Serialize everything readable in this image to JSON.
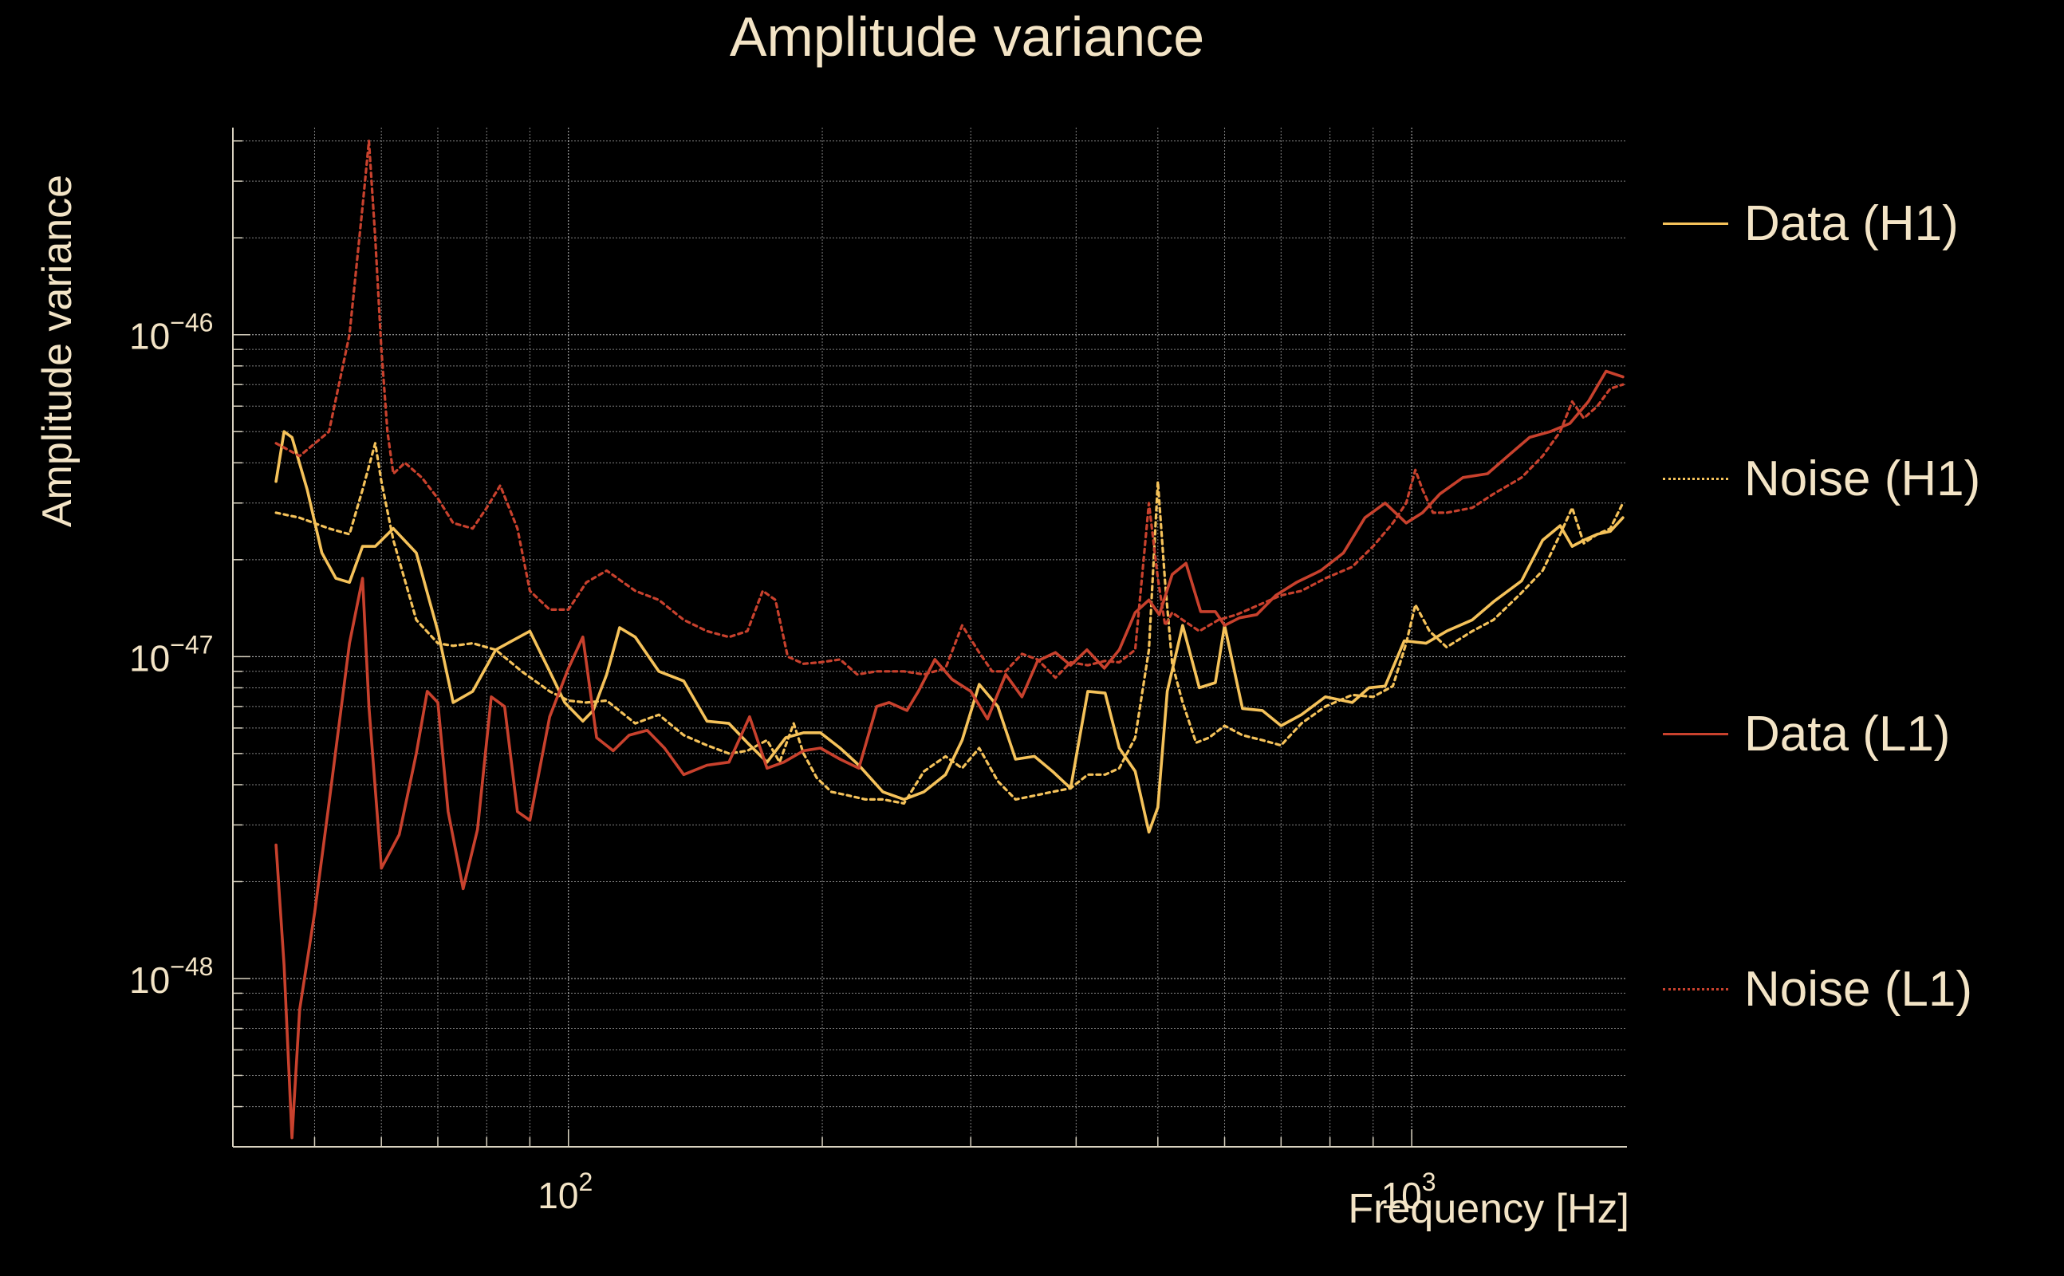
{
  "chart_data": {
    "type": "line",
    "title": "Amplitude variance",
    "xlabel": "Frequency [Hz]",
    "ylabel": "Amplitude variance",
    "x_scale": "log",
    "y_scale": "log",
    "xlim": [
      40,
      1800
    ],
    "ylim": [
      3e-49,
      4.4e-46
    ],
    "x_ticks": [
      {
        "value": 100,
        "base": "10",
        "exp": "2"
      },
      {
        "value": 1000,
        "base": "10",
        "exp": "3"
      }
    ],
    "y_ticks": [
      {
        "value": 1e-46,
        "base": "10",
        "exp": "−46"
      },
      {
        "value": 1e-47,
        "base": "10",
        "exp": "−47"
      },
      {
        "value": 1e-48,
        "base": "10",
        "exp": "−48"
      }
    ],
    "grid": true,
    "legend_position": "right",
    "series": [
      {
        "name": "Data (H1)",
        "color": "#f5c25a",
        "style": "solid",
        "x": [
          45,
          46,
          47,
          49,
          51,
          53,
          55,
          57,
          59,
          62,
          66,
          70,
          73,
          77,
          82,
          90,
          95,
          99,
          104,
          107,
          111,
          115,
          120,
          128,
          137,
          146,
          155,
          163,
          172,
          181,
          190,
          199,
          210,
          221,
          236,
          250,
          264,
          280,
          293,
          307,
          323,
          339,
          357,
          375,
          394,
          413,
          433,
          450,
          470,
          488,
          500,
          513,
          535,
          560,
          585,
          600,
          630,
          665,
          700,
          740,
          790,
          850,
          890,
          930,
          980,
          1040,
          1100,
          1180,
          1250,
          1350,
          1430,
          1500,
          1550,
          1600,
          1660,
          1720,
          1780
        ],
        "y": [
          3.5e-47,
          5e-47,
          4.8e-47,
          3.3e-47,
          2.1e-47,
          1.75e-47,
          1.7e-47,
          2.2e-47,
          2.2e-47,
          2.5e-47,
          2.1e-47,
          1.2e-47,
          7.2e-48,
          7.8e-48,
          1.05e-47,
          1.2e-47,
          9e-48,
          7.2e-48,
          6.3e-48,
          6.8e-48,
          8.8e-48,
          1.23e-47,
          1.15e-47,
          9e-48,
          8.4e-48,
          6.3e-48,
          6.2e-48,
          5.4e-48,
          4.7e-48,
          5.6e-48,
          5.8e-48,
          5.8e-48,
          5.2e-48,
          4.6e-48,
          3.8e-48,
          3.6e-48,
          3.8e-48,
          4.3e-48,
          5.5e-48,
          8.2e-48,
          7e-48,
          4.8e-48,
          4.9e-48,
          4.4e-48,
          3.9e-48,
          7.8e-48,
          7.7e-48,
          5.2e-48,
          4.4e-48,
          2.85e-48,
          3.4e-48,
          7.8e-48,
          1.25e-47,
          8e-48,
          8.3e-48,
          1.25e-47,
          6.9e-48,
          6.8e-48,
          6.1e-48,
          6.6e-48,
          7.5e-48,
          7.2e-48,
          8e-48,
          8.1e-48,
          1.12e-47,
          1.1e-47,
          1.2e-47,
          1.3e-47,
          1.48e-47,
          1.72e-47,
          2.3e-47,
          2.55e-47,
          2.2e-47,
          2.3e-47,
          2.4e-47,
          2.45e-47,
          2.7e-47
        ]
      },
      {
        "name": "Noise (H1)",
        "color": "#f5c25a",
        "style": "dotted",
        "x": [
          45,
          48,
          52,
          55,
          57,
          59,
          60,
          62,
          66,
          70,
          73,
          77,
          82,
          88,
          95,
          100,
          105,
          111,
          120,
          128,
          137,
          146,
          155,
          163,
          172,
          178,
          185,
          190,
          197,
          205,
          215,
          225,
          236,
          250,
          264,
          280,
          293,
          307,
          323,
          339,
          357,
          375,
          394,
          413,
          433,
          450,
          470,
          488,
          500,
          510,
          520,
          535,
          555,
          575,
          600,
          630,
          665,
          700,
          740,
          790,
          850,
          900,
          950,
          985,
          1010,
          1050,
          1100,
          1180,
          1250,
          1350,
          1430,
          1500,
          1550,
          1600,
          1660,
          1720,
          1780
        ],
        "y": [
          2.8e-47,
          2.7e-47,
          2.5e-47,
          2.4e-47,
          3.3e-47,
          4.6e-47,
          3.5e-47,
          2.3e-47,
          1.3e-47,
          1.1e-47,
          1.08e-47,
          1.1e-47,
          1.05e-47,
          9e-48,
          7.8e-48,
          7.3e-48,
          7.2e-48,
          7.3e-48,
          6.2e-48,
          6.6e-48,
          5.7e-48,
          5.3e-48,
          5e-48,
          5.1e-48,
          5.5e-48,
          4.7e-48,
          6.2e-48,
          5e-48,
          4.2e-48,
          3.8e-48,
          3.7e-48,
          3.6e-48,
          3.6e-48,
          3.5e-48,
          4.4e-48,
          4.9e-48,
          4.5e-48,
          5.2e-48,
          4.1e-48,
          3.6e-48,
          3.7e-48,
          3.8e-48,
          3.9e-48,
          4.3e-48,
          4.3e-48,
          4.5e-48,
          5.6e-48,
          1.05e-47,
          3.5e-47,
          1.7e-47,
          9.5e-48,
          7.2e-48,
          5.4e-48,
          5.6e-48,
          6.1e-48,
          5.7e-48,
          5.5e-48,
          5.3e-48,
          6.2e-48,
          7e-48,
          7.6e-48,
          7.5e-48,
          8.1e-48,
          1.1e-47,
          1.45e-47,
          1.2e-47,
          1.07e-47,
          1.2e-47,
          1.3e-47,
          1.58e-47,
          1.85e-47,
          2.4e-47,
          2.9e-47,
          2.25e-47,
          2.4e-47,
          2.5e-47,
          3e-47
        ]
      },
      {
        "name": "Data (L1)",
        "color": "#c8412d",
        "style": "solid",
        "x": [
          45,
          46,
          47,
          48,
          50,
          52,
          55,
          57,
          58,
          60,
          63,
          66,
          68,
          70,
          72,
          75,
          78,
          81,
          84,
          87,
          90,
          95,
          100,
          104,
          108,
          113,
          118,
          124,
          130,
          137,
          146,
          155,
          164,
          172,
          180,
          190,
          199,
          210,
          221,
          232,
          240,
          252,
          260,
          272,
          285,
          300,
          314,
          330,
          345,
          360,
          378,
          394,
          412,
          432,
          450,
          470,
          488,
          502,
          520,
          540,
          562,
          585,
          600,
          625,
          655,
          690,
          730,
          780,
          830,
          880,
          930,
          985,
          1030,
          1080,
          1150,
          1230,
          1300,
          1380,
          1460,
          1540,
          1620,
          1700,
          1780
        ],
        "y": [
          2.6e-48,
          1.1e-48,
          3.2e-49,
          8e-49,
          1.6e-48,
          3.5e-48,
          1.1e-47,
          1.75e-47,
          7e-48,
          2.2e-48,
          2.8e-48,
          5e-48,
          7.8e-48,
          7.2e-48,
          3.3e-48,
          1.9e-48,
          2.9e-48,
          7.5e-48,
          7e-48,
          3.3e-48,
          3.1e-48,
          6.5e-48,
          9.2e-48,
          1.15e-47,
          5.6e-48,
          5.1e-48,
          5.7e-48,
          5.9e-48,
          5.2e-48,
          4.3e-48,
          4.6e-48,
          4.7e-48,
          6.5e-48,
          4.5e-48,
          4.7e-48,
          5.1e-48,
          5.2e-48,
          4.8e-48,
          4.5e-48,
          7e-48,
          7.2e-48,
          6.8e-48,
          7.8e-48,
          9.8e-48,
          8.5e-48,
          7.8e-48,
          6.4e-48,
          8.8e-48,
          7.5e-48,
          9.7e-48,
          1.03e-47,
          9.4e-48,
          1.05e-47,
          9.2e-48,
          1.05e-47,
          1.37e-47,
          1.5e-47,
          1.35e-47,
          1.8e-47,
          1.95e-47,
          1.38e-47,
          1.38e-47,
          1.25e-47,
          1.32e-47,
          1.35e-47,
          1.55e-47,
          1.7e-47,
          1.85e-47,
          2.1e-47,
          2.7e-47,
          3e-47,
          2.6e-47,
          2.8e-47,
          3.2e-47,
          3.6e-47,
          3.7e-47,
          4.2e-47,
          4.8e-47,
          5e-47,
          5.3e-47,
          6.2e-47,
          7.7e-47,
          7.4e-47
        ]
      },
      {
        "name": "Noise (L1)",
        "color": "#c8412d",
        "style": "dotted",
        "x": [
          45,
          48,
          52,
          55,
          57,
          58,
          59,
          60,
          61,
          62,
          64,
          67,
          70,
          73,
          77,
          80,
          83,
          87,
          90,
          95,
          100,
          105,
          111,
          120,
          128,
          137,
          146,
          155,
          163,
          170,
          176,
          182,
          190,
          199,
          210,
          220,
          232,
          250,
          264,
          280,
          293,
          307,
          318,
          330,
          345,
          360,
          378,
          394,
          413,
          433,
          450,
          470,
          488,
          500,
          510,
          520,
          535,
          560,
          590,
          620,
          660,
          700,
          740,
          790,
          850,
          900,
          950,
          985,
          1010,
          1030,
          1060,
          1100,
          1180,
          1250,
          1350,
          1430,
          1500,
          1550,
          1600,
          1660,
          1720,
          1780
        ],
        "y": [
          4.6e-47,
          4.2e-47,
          5e-47,
          1e-46,
          2.5e-46,
          4e-46,
          2e-46,
          9e-47,
          5e-47,
          3.7e-47,
          4e-47,
          3.6e-47,
          3.1e-47,
          2.6e-47,
          2.5e-47,
          2.9e-47,
          3.4e-47,
          2.5e-47,
          1.6e-47,
          1.4e-47,
          1.4e-47,
          1.7e-47,
          1.85e-47,
          1.6e-47,
          1.5e-47,
          1.3e-47,
          1.2e-47,
          1.15e-47,
          1.2e-47,
          1.6e-47,
          1.5e-47,
          1e-47,
          9.5e-48,
          9.6e-48,
          9.8e-48,
          8.8e-48,
          9e-48,
          9e-48,
          8.8e-48,
          9.2e-48,
          1.25e-47,
          1.03e-47,
          9e-48,
          9e-48,
          1.02e-47,
          9.8e-48,
          8.6e-48,
          9.6e-48,
          9.4e-48,
          9.7e-48,
          9.6e-48,
          1.05e-47,
          3e-47,
          1.75e-47,
          1.25e-47,
          1.37e-47,
          1.3e-47,
          1.2e-47,
          1.3e-47,
          1.35e-47,
          1.45e-47,
          1.55e-47,
          1.6e-47,
          1.75e-47,
          1.9e-47,
          2.2e-47,
          2.6e-47,
          3e-47,
          3.8e-47,
          3.3e-47,
          2.8e-47,
          2.8e-47,
          2.9e-47,
          3.2e-47,
          3.6e-47,
          4.2e-47,
          5e-47,
          6.2e-47,
          5.5e-47,
          6e-47,
          6.8e-47,
          7e-47
        ]
      }
    ]
  },
  "colors": {
    "background": "#000000",
    "text": "#f3e4c6",
    "grid": "#ffffff",
    "axis": "#d9d2c0"
  }
}
